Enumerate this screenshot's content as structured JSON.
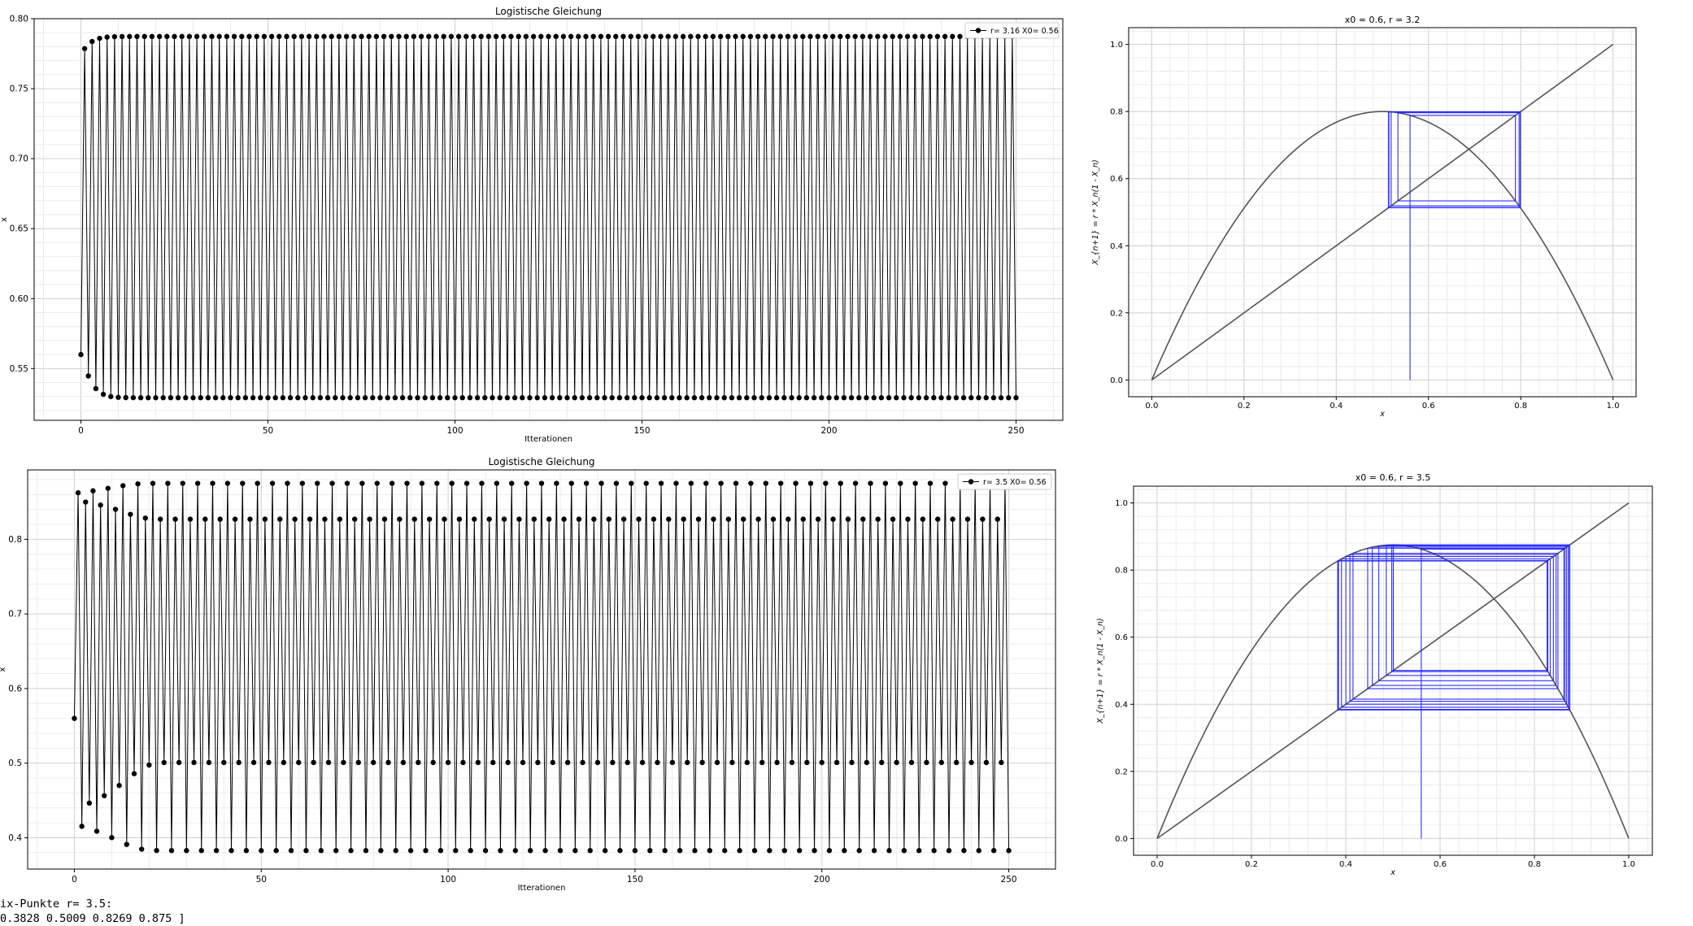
{
  "chart_data": [
    {
      "type": "line",
      "title": "Logistische Gleichung",
      "xlabel": "Itterationen",
      "ylabel": "x",
      "legend": "top-right",
      "grid": true,
      "xlim": [
        -12.5,
        262.5
      ],
      "ylim": [
        0.513,
        0.8
      ],
      "xticks": [
        0,
        50,
        100,
        150,
        200,
        250
      ],
      "yticks": [
        0.55,
        0.6,
        0.65,
        0.7,
        0.75,
        0.8
      ],
      "ytick_labels": [
        "0.55",
        "0.60",
        "0.65",
        "0.70",
        "0.75",
        "0.80"
      ],
      "series": [
        {
          "name": "r= 3.16 X0= 0.56",
          "r": 3.16,
          "x0": 0.56,
          "n": 250
        }
      ]
    },
    {
      "type": "line",
      "title": "Logistische Gleichung",
      "xlabel": "Itterationen",
      "ylabel": "x",
      "legend": "top-right",
      "grid": true,
      "xlim": [
        -12.5,
        262.5
      ],
      "ylim": [
        0.358,
        0.893
      ],
      "xticks": [
        0,
        50,
        100,
        150,
        200,
        250
      ],
      "yticks": [
        0.4,
        0.5,
        0.6,
        0.7,
        0.8
      ],
      "ytick_labels": [
        "0.4",
        "0.5",
        "0.6",
        "0.7",
        "0.8"
      ],
      "series": [
        {
          "name": "r= 3.5 X0= 0.56",
          "r": 3.5,
          "x0": 0.56,
          "n": 250
        }
      ]
    },
    {
      "type": "line",
      "title": "x0 = 0.6, r = 3.2",
      "xlabel": "x",
      "ylabel": "X_{n+1} = r * X_n(1 - X_n)",
      "grid": true,
      "xlim": [
        -0.05,
        1.05
      ],
      "ylim": [
        -0.05,
        1.05
      ],
      "xticks": [
        0.0,
        0.2,
        0.4,
        0.6,
        0.8,
        1.0
      ],
      "yticks": [
        0.0,
        0.2,
        0.4,
        0.6,
        0.8,
        1.0
      ],
      "xtick_labels": [
        "0.0",
        "0.2",
        "0.4",
        "0.6",
        "0.8",
        "1.0"
      ],
      "ytick_labels": [
        "0.0",
        "0.2",
        "0.4",
        "0.6",
        "0.8",
        "1.0"
      ],
      "r": 3.2,
      "cobweb_start": 0.56,
      "cobweb_steps": 40,
      "curve_color": "#555555",
      "cobweb_color": "#1a1aff"
    },
    {
      "type": "line",
      "title": "x0 = 0.6, r = 3.5",
      "xlabel": "x",
      "ylabel": "X_{n+1} = r * X_n(1 - X_n)",
      "grid": true,
      "xlim": [
        -0.05,
        1.05
      ],
      "ylim": [
        -0.05,
        1.05
      ],
      "xticks": [
        0.0,
        0.2,
        0.4,
        0.6,
        0.8,
        1.0
      ],
      "yticks": [
        0.0,
        0.2,
        0.4,
        0.6,
        0.8,
        1.0
      ],
      "xtick_labels": [
        "0.0",
        "0.2",
        "0.4",
        "0.6",
        "0.8",
        "1.0"
      ],
      "ytick_labels": [
        "0.0",
        "0.2",
        "0.4",
        "0.6",
        "0.8",
        "1.0"
      ],
      "r": 3.5,
      "cobweb_start": 0.56,
      "cobweb_steps": 40,
      "curve_color": "#555555",
      "cobweb_color": "#1a1aff"
    }
  ],
  "console": {
    "line1": "ix-Punkte r= 3.5:",
    "line2": "0.3828 0.5009 0.8269 0.875 ]"
  }
}
